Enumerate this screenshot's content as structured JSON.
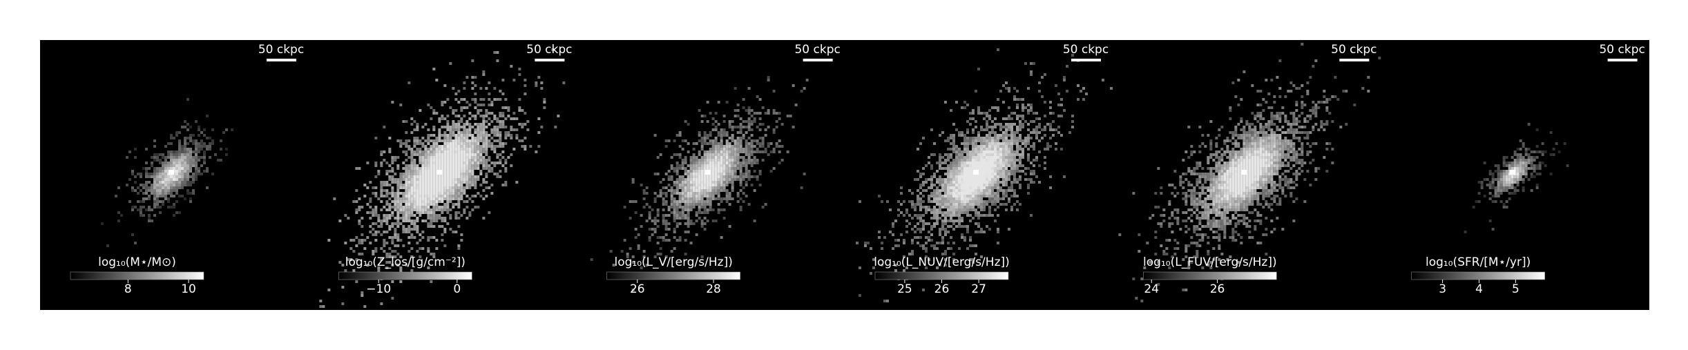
{
  "panels": [
    {
      "scale_label": "50 ckpc",
      "colorbar": {
        "label": "log₁₀(M⋆/M⊙)",
        "lim": [
          6.1,
          10.5
        ],
        "ticks": [
          8,
          10
        ]
      }
    },
    {
      "scale_label": "50 ckpc",
      "colorbar": {
        "label": "log₁₀(Z_los/[g/cm⁻²])",
        "lim": [
          -15.1,
          1.9
        ],
        "ticks": [
          {
            "value": -10,
            "label": "−10"
          },
          0
        ]
      }
    },
    {
      "scale_label": "50 ckpc",
      "colorbar": {
        "label": "log₁₀(L_V/[erg/s/Hz])",
        "lim": [
          25.2,
          28.7
        ],
        "ticks": [
          26,
          28
        ]
      }
    },
    {
      "scale_label": "50 ckpc",
      "colorbar": {
        "label": "log₁₀(L_NUV/[erg/s/Hz])",
        "lim": [
          24.2,
          27.8
        ],
        "ticks": [
          25,
          26,
          27
        ]
      }
    },
    {
      "scale_label": "50 ckpc",
      "colorbar": {
        "label": "log₁₀(L_FUV/[erg/s/Hz])",
        "lim": [
          23.75,
          27.8
        ],
        "ticks": [
          24,
          26
        ]
      }
    },
    {
      "scale_label": "50 ckpc",
      "colorbar": {
        "label": "log₁₀(SFR/[M⋆/yr])",
        "lim": [
          2.15,
          5.8
        ],
        "ticks": [
          3,
          4,
          5
        ]
      }
    }
  ]
}
